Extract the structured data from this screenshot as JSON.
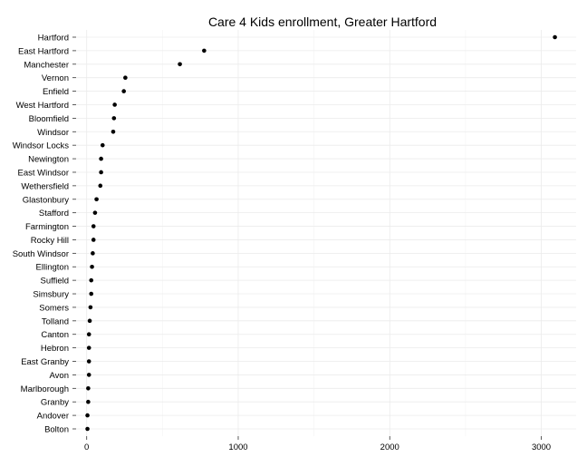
{
  "chart_data": {
    "type": "scatter",
    "title": "Care 4 Kids enrollment, Greater Hartford",
    "xlabel": "",
    "ylabel": "",
    "categories": [
      "Hartford",
      "East Hartford",
      "Manchester",
      "Vernon",
      "Enfield",
      "West Hartford",
      "Bloomfield",
      "Windsor",
      "Windsor Locks",
      "Newington",
      "East Windsor",
      "Wethersfield",
      "Glastonbury",
      "Stafford",
      "Farmington",
      "Rocky Hill",
      "South Windsor",
      "Ellington",
      "Suffield",
      "Simsbury",
      "Somers",
      "Tolland",
      "Canton",
      "Hebron",
      "East Granby",
      "Avon",
      "Marlborough",
      "Granby",
      "Andover",
      "Bolton"
    ],
    "values": [
      3090,
      775,
      615,
      255,
      245,
      185,
      180,
      175,
      105,
      95,
      95,
      90,
      65,
      55,
      45,
      45,
      40,
      35,
      30,
      30,
      25,
      20,
      15,
      15,
      15,
      15,
      10,
      10,
      5,
      5
    ],
    "xlim": [
      -70,
      3230
    ],
    "x_ticks": [
      0,
      1000,
      2000,
      3000
    ],
    "x_tick_labels": [
      "0",
      "1000",
      "2000",
      "3000"
    ],
    "grid": true
  }
}
